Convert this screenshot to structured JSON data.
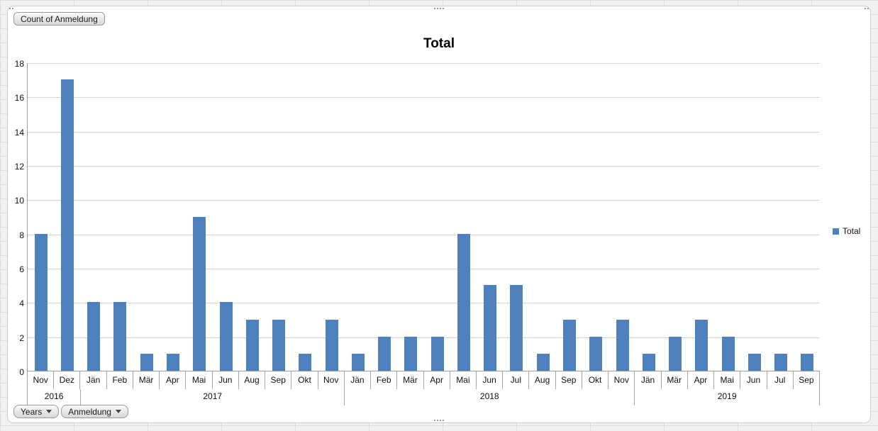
{
  "chart_data": {
    "type": "bar",
    "title": "Total",
    "series_name": "Total",
    "bar_color": "#4e81bd",
    "ylim": [
      0,
      18
    ],
    "ytick_step": 2,
    "yticks": [
      0,
      2,
      4,
      6,
      8,
      10,
      12,
      14,
      16,
      18
    ],
    "grid": true,
    "legend_position": "right",
    "groups": [
      {
        "year": "2016",
        "months": [
          "Nov",
          "Dez"
        ],
        "values": [
          8,
          17
        ]
      },
      {
        "year": "2017",
        "months": [
          "Jän",
          "Feb",
          "Mär",
          "Apr",
          "Mai",
          "Jun",
          "Aug",
          "Sep",
          "Okt",
          "Nov"
        ],
        "values": [
          4,
          4,
          1,
          1,
          9,
          4,
          3,
          3,
          1,
          3
        ]
      },
      {
        "year": "2018",
        "months": [
          "Jän",
          "Feb",
          "Mär",
          "Apr",
          "Mai",
          "Jun",
          "Jul",
          "Aug",
          "Sep",
          "Okt",
          "Nov"
        ],
        "values": [
          1,
          2,
          2,
          2,
          8,
          5,
          5,
          1,
          3,
          2,
          3
        ]
      },
      {
        "year": "2019",
        "months": [
          "Jän",
          "Mär",
          "Apr",
          "Mai",
          "Jun",
          "Jul",
          "Sep"
        ],
        "values": [
          1,
          2,
          3,
          2,
          1,
          1,
          1
        ]
      }
    ]
  },
  "pivot_buttons": {
    "value_field": "Count of Anmeldung",
    "axis_fields": [
      {
        "label": "Years"
      },
      {
        "label": "Anmeldung"
      }
    ]
  }
}
